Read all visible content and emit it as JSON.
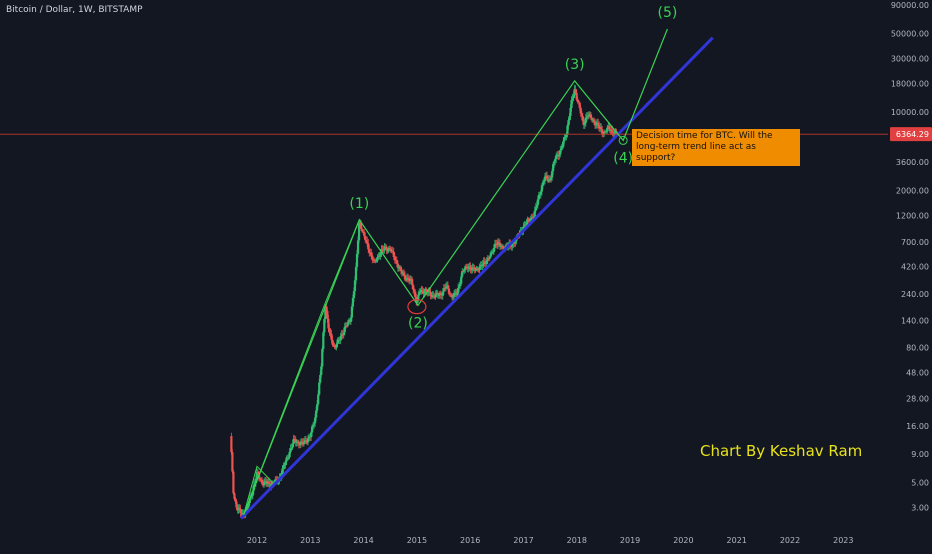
{
  "symbol": {
    "title": "Bitcoin / Dollar, 1W, BITSTAMP"
  },
  "annotation": {
    "text": "Decision time for BTC. Will the long-term trend line act as support?"
  },
  "watermark": {
    "text": "Chart By Keshav Ram"
  },
  "colors": {
    "background": "#131722",
    "up_candle": "#2fbf71",
    "down_candle": "#ef5350",
    "wave_line": "#39d353",
    "trend_line": "#2f35d6",
    "price_line": "#c0392b",
    "price_badge": "#e04040",
    "callout_bg": "#f08c00",
    "watermark": "#e8e21a",
    "axis_text": "#b2b5be"
  },
  "chart_data": {
    "type": "candlestick",
    "scale": "log",
    "ylim": [
      2.4,
      90000
    ],
    "xlim": [
      2011.4,
      2023.6
    ],
    "y_ticks": [
      "90000.00",
      "50000.00",
      "30000.00",
      "18000.00",
      "10000.00",
      "3600.00",
      "2000.00",
      "1200.00",
      "700.00",
      "420.00",
      "240.00",
      "140.00",
      "80.00",
      "48.00",
      "28.00",
      "16.00",
      "9.00",
      "5.00",
      "3.00"
    ],
    "x_ticks": [
      "2012",
      "2013",
      "2014",
      "2015",
      "2016",
      "2017",
      "2018",
      "2019",
      "2020",
      "2021",
      "2022",
      "2023"
    ],
    "current_price": {
      "label": "6364.29",
      "value": 6364.29
    },
    "price_path": [
      [
        2011.5,
        13
      ],
      [
        2011.56,
        4
      ],
      [
        2011.62,
        3
      ],
      [
        2011.72,
        2.6
      ],
      [
        2011.8,
        2.8
      ],
      [
        2011.9,
        4
      ],
      [
        2012.0,
        6
      ],
      [
        2012.1,
        5
      ],
      [
        2012.25,
        4.9
      ],
      [
        2012.4,
        5.2
      ],
      [
        2012.55,
        8
      ],
      [
        2012.7,
        12
      ],
      [
        2012.85,
        11
      ],
      [
        2013.0,
        13
      ],
      [
        2013.1,
        20
      ],
      [
        2013.2,
        50
      ],
      [
        2013.28,
        200
      ],
      [
        2013.35,
        110
      ],
      [
        2013.45,
        80
      ],
      [
        2013.55,
        95
      ],
      [
        2013.65,
        120
      ],
      [
        2013.75,
        140
      ],
      [
        2013.85,
        350
      ],
      [
        2013.92,
        1100
      ],
      [
        2014.0,
        800
      ],
      [
        2014.1,
        600
      ],
      [
        2014.2,
        450
      ],
      [
        2014.3,
        550
      ],
      [
        2014.4,
        620
      ],
      [
        2014.5,
        600
      ],
      [
        2014.6,
        480
      ],
      [
        2014.7,
        380
      ],
      [
        2014.8,
        330
      ],
      [
        2014.9,
        310
      ],
      [
        2015.0,
        200
      ],
      [
        2015.05,
        250
      ],
      [
        2015.15,
        260
      ],
      [
        2015.3,
        230
      ],
      [
        2015.45,
        240
      ],
      [
        2015.55,
        280
      ],
      [
        2015.65,
        230
      ],
      [
        2015.75,
        240
      ],
      [
        2015.85,
        370
      ],
      [
        2015.95,
        430
      ],
      [
        2016.05,
        390
      ],
      [
        2016.2,
        420
      ],
      [
        2016.4,
        540
      ],
      [
        2016.48,
        700
      ],
      [
        2016.6,
        620
      ],
      [
        2016.75,
        640
      ],
      [
        2016.9,
        780
      ],
      [
        2017.0,
        950
      ],
      [
        2017.1,
        1100
      ],
      [
        2017.2,
        1200
      ],
      [
        2017.3,
        1900
      ],
      [
        2017.4,
        2600
      ],
      [
        2017.5,
        2500
      ],
      [
        2017.6,
        4000
      ],
      [
        2017.7,
        4500
      ],
      [
        2017.8,
        6500
      ],
      [
        2017.9,
        12000
      ],
      [
        2017.96,
        16000
      ],
      [
        2018.05,
        11000
      ],
      [
        2018.12,
        7800
      ],
      [
        2018.2,
        9500
      ],
      [
        2018.3,
        8500
      ],
      [
        2018.4,
        7500
      ],
      [
        2018.5,
        6500
      ],
      [
        2018.6,
        7200
      ],
      [
        2018.7,
        6500
      ],
      [
        2018.75,
        6364.29
      ]
    ],
    "elliott_wave": {
      "points": [
        {
          "label": "",
          "x": 2011.75,
          "y": 2.6
        },
        {
          "label": "(1)",
          "x": 2013.92,
          "y": 1100
        },
        {
          "label": "(2)",
          "x": 2015.02,
          "y": 190
        },
        {
          "label": "(3)",
          "x": 2017.96,
          "y": 19000
        },
        {
          "label": "(4)",
          "x": 2018.87,
          "y": 5600
        },
        {
          "label": "(5)",
          "x": 2019.7,
          "y": 55000
        }
      ],
      "extra_line": [
        [
          2011.75,
          2.6
        ],
        [
          2012.0,
          7
        ],
        [
          2012.3,
          5
        ]
      ],
      "leg1_spike": [
        [
          2013.28,
          200
        ]
      ]
    },
    "trend_line": {
      "from": [
        2011.7,
        2.4
      ],
      "to": [
        2020.55,
        46000
      ]
    },
    "highlight_circle": {
      "x": 2015.0,
      "y": 185
    }
  }
}
